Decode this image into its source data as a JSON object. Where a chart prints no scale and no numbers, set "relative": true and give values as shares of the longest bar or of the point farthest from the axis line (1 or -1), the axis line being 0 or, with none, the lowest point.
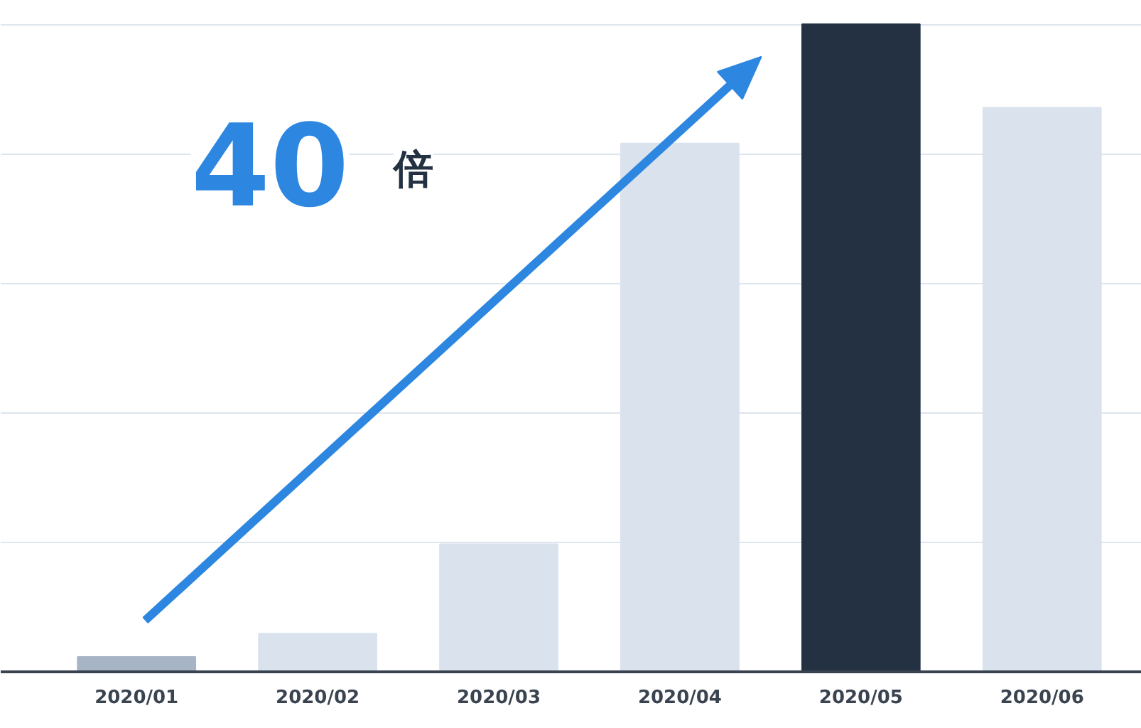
{
  "chart_data": {
    "type": "bar",
    "relative": true,
    "grid": "y",
    "categories": [
      "2020/01",
      "2020/02",
      "2020/03",
      "2020/04",
      "2020/05",
      "2020/06"
    ],
    "values": [
      0.023,
      0.059,
      0.197,
      0.816,
      1,
      0.871
    ],
    "colors": [
      "#a7b4c6",
      "#d9e2ed",
      "#d9e2ed",
      "#d9e2ed",
      "#233142",
      "#d9e2ed"
    ],
    "annotations": [
      "40",
      "倍"
    ]
  }
}
